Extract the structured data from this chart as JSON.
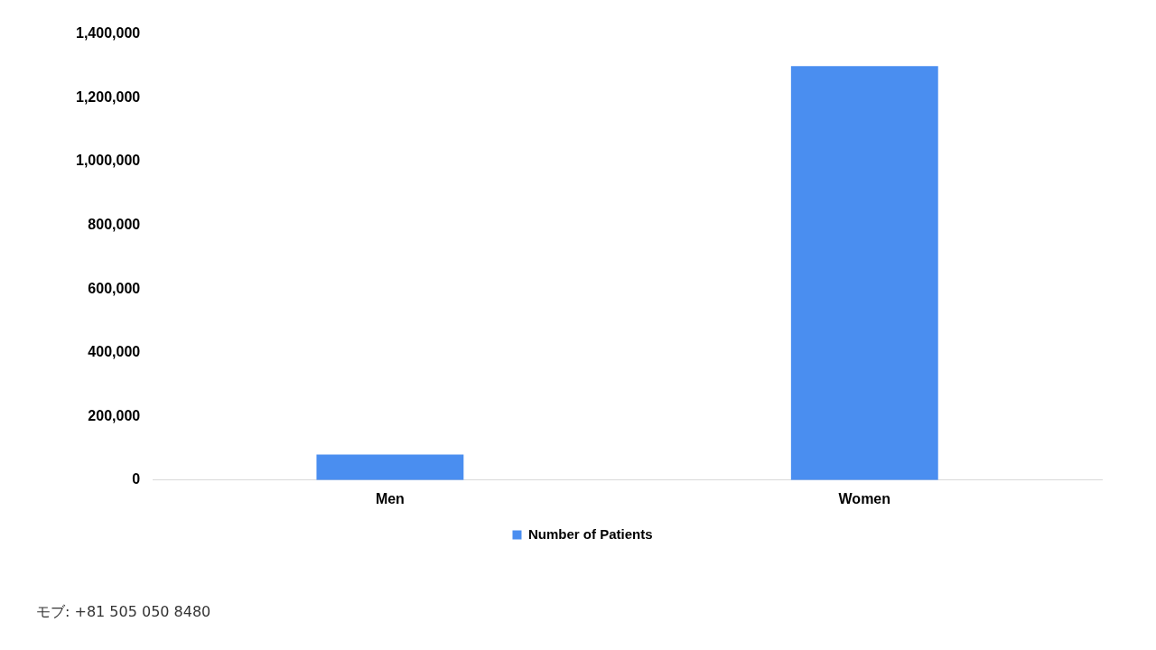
{
  "chart_data": {
    "type": "bar",
    "categories": [
      "Men",
      "Women"
    ],
    "series": [
      {
        "name": "Number of Patients",
        "color": "#4a8ef0",
        "values": [
          80000,
          1300000
        ]
      }
    ],
    "ylim": [
      0,
      1400000
    ],
    "yticks": [
      {
        "value": 0,
        "label": "0"
      },
      {
        "value": 200000,
        "label": "200,000"
      },
      {
        "value": 400000,
        "label": "400,000"
      },
      {
        "value": 600000,
        "label": "600,000"
      },
      {
        "value": 800000,
        "label": "800,000"
      },
      {
        "value": 1000000,
        "label": "1,000,000"
      },
      {
        "value": 1200000,
        "label": "1,200,000"
      },
      {
        "value": 1400000,
        "label": "1,400,000"
      }
    ],
    "grid": false,
    "legend": "bottom",
    "annotations": [
      "モブ: +81 505 050 8480"
    ]
  }
}
